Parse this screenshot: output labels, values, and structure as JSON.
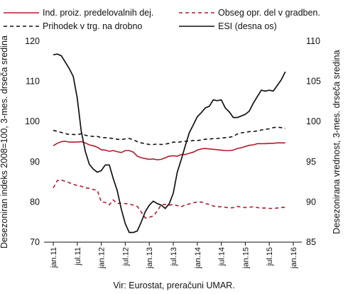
{
  "chart_data": {
    "type": "line",
    "x": [
      "jan.11",
      "feb.11",
      "mar.11",
      "apr.11",
      "maj.11",
      "jun.11",
      "jul.11",
      "avg.11",
      "sep.11",
      "okt.11",
      "nov.11",
      "dec.11",
      "jan.12",
      "feb.12",
      "mar.12",
      "apr.12",
      "maj.12",
      "jun.12",
      "jul.12",
      "avg.12",
      "sep.12",
      "okt.12",
      "nov.12",
      "dec.12",
      "jan.13",
      "feb.13",
      "mar.13",
      "apr.13",
      "maj.13",
      "jun.13",
      "jul.13",
      "avg.13",
      "sep.13",
      "okt.13",
      "nov.13",
      "dec.13",
      "jan.14",
      "feb.14",
      "mar.14",
      "apr.14",
      "maj.14",
      "jun.14",
      "jul.14",
      "avg.14",
      "sep.14",
      "okt.14",
      "nov.14",
      "dec.14",
      "jan.15",
      "feb.15",
      "mar.15",
      "apr.15",
      "maj.15",
      "jun.15",
      "jul.15",
      "avg.15",
      "sep.15",
      "okt.15",
      "nov.15"
    ],
    "x_ticks": [
      "jan.11",
      "jul.11",
      "jan.12",
      "jul.12",
      "jan.13",
      "jul.13",
      "jan.14",
      "jul.14",
      "jan.15",
      "jul.15",
      "jan.16"
    ],
    "ylabel": "Desezoniran indeks 2008=100, 3-mes. drseča sredina",
    "y2label": "Desezonirana vrednost, 3-mes. drseča sredina",
    "ylim": [
      70,
      120
    ],
    "y_ticks": [
      70,
      80,
      90,
      100,
      110,
      120
    ],
    "y2lim": [
      85,
      110
    ],
    "y2_ticks": [
      85,
      90,
      95,
      100,
      105,
      110
    ],
    "legend_position": "top",
    "grid": false,
    "series": [
      {
        "name": "Ind. proiz. predelovalnih dej.",
        "axis": "left",
        "color": "#b01c2e",
        "dash": "solid",
        "values": [
          94,
          94.6,
          95,
          95.1,
          94.9,
          94.9,
          94.9,
          95,
          94.7,
          94.2,
          94,
          93.6,
          93,
          92.9,
          92.6,
          92.8,
          92.5,
          92.3,
          92.8,
          92.8,
          92.4,
          91.4,
          91,
          90.8,
          90.6,
          90.7,
          90.5,
          90.6,
          91,
          91.4,
          91.5,
          91.4,
          91.8,
          91.8,
          92.1,
          92.4,
          92.9,
          93.2,
          93.3,
          93.2,
          93.1,
          93,
          92.9,
          92.8,
          92.8,
          92.9,
          93.3,
          93.5,
          93.8,
          94.1,
          94.2,
          94.5,
          94.5,
          94.5,
          94.6,
          94.6,
          94.7,
          94.7,
          94.7
        ]
      },
      {
        "name": "Obseg opr. del v gradben.",
        "axis": "left",
        "color": "#b01c2e",
        "dash": "dashed",
        "values": [
          83.5,
          85.3,
          85.5,
          85.1,
          84.8,
          84.4,
          84.1,
          83.9,
          83.5,
          83.4,
          83.1,
          82.9,
          80,
          79.9,
          79.3,
          80.5,
          79.6,
          79.7,
          79.6,
          79.5,
          79.2,
          78.9,
          77.5,
          76,
          76.2,
          76.5,
          77.8,
          79.3,
          79.4,
          79.2,
          79.4,
          79.1,
          78.8,
          79.3,
          79.5,
          79.8,
          80,
          80,
          79.6,
          79.4,
          79,
          78.8,
          78.8,
          78.7,
          78.5,
          78.6,
          78.9,
          78.7,
          78.6,
          78.7,
          78.8,
          78.6,
          78.5,
          78.5,
          78.4,
          78.4,
          78.5,
          78.6,
          78.7
        ]
      },
      {
        "name": "Prihodek v trg. na drobno",
        "axis": "left",
        "color": "#111111",
        "dash": "dashed",
        "values": [
          97.8,
          97.6,
          97.3,
          97,
          96.8,
          96.8,
          96.7,
          97,
          96.6,
          96.4,
          96.3,
          96.3,
          96,
          96,
          95.9,
          95.8,
          95.6,
          95.5,
          95.7,
          95.8,
          95.5,
          95,
          94.7,
          94.5,
          94.3,
          94.3,
          94.4,
          94.3,
          94.4,
          94.6,
          94.9,
          94.8,
          95,
          95.1,
          95.1,
          95.3,
          95.3,
          95.4,
          95.6,
          95.6,
          95.8,
          95.8,
          95.9,
          96,
          96.1,
          96.3,
          96.9,
          97.2,
          97.3,
          97.5,
          97.5,
          97.7,
          97.9,
          98.1,
          98.2,
          98.5,
          98.6,
          98.5,
          98.3
        ]
      },
      {
        "name": "ESI (desna os)",
        "axis": "right",
        "color": "#111111",
        "dash": "solid",
        "values": [
          108.3,
          108.4,
          108.2,
          107.4,
          106.6,
          105.6,
          102.9,
          98.8,
          96.3,
          94.7,
          94.1,
          93.7,
          93.9,
          94.6,
          94.6,
          92.9,
          91.4,
          89.1,
          87.3,
          86.2,
          86.2,
          86.4,
          87.5,
          88.8,
          89.6,
          90.1,
          89.8,
          89.6,
          89.2,
          89.8,
          91.1,
          93.7,
          95.3,
          97,
          98.6,
          99.6,
          100.6,
          101.1,
          101.7,
          101.9,
          102.7,
          102.6,
          102.7,
          101.7,
          101.2,
          100.5,
          100.5,
          100.7,
          100.9,
          101.3,
          102.3,
          103.1,
          103.9,
          103.8,
          103.9,
          103.8,
          104.5,
          105.2,
          106.2
        ]
      }
    ]
  },
  "source_note": "Vir: Eurostat, preračuni UMAR."
}
